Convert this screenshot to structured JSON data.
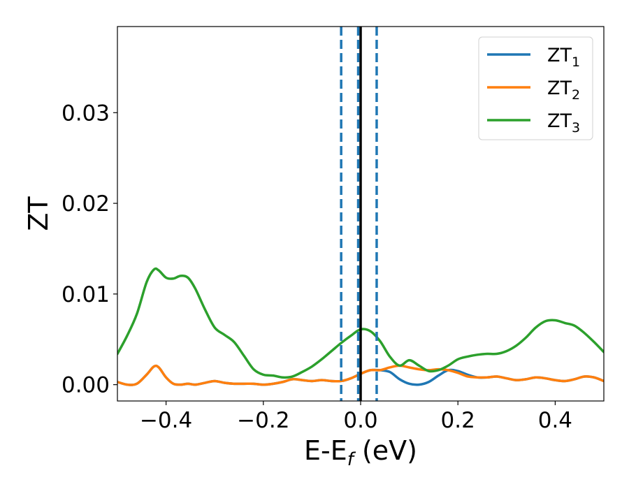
{
  "chart_data": {
    "type": "line",
    "xlabel": "E-E",
    "xlabel_sub": "f",
    "xlabel_unit": " (eV)",
    "ylabel": "ZT",
    "xlim": [
      -0.5,
      0.5
    ],
    "ylim": [
      -0.0018,
      0.0395
    ],
    "xticks": [
      -0.4,
      -0.2,
      0.0,
      0.2,
      0.4
    ],
    "xtick_labels": [
      "−0.4",
      "−0.2",
      "0.0",
      "0.2",
      "0.4"
    ],
    "yticks": [
      0.0,
      0.01,
      0.02,
      0.03
    ],
    "ytick_labels": [
      "0.00",
      "0.01",
      "0.02",
      "0.03"
    ],
    "grid": false,
    "legend_position": "top-right",
    "vlines": [
      {
        "x": 0.0,
        "style": "solid",
        "color": "#000000"
      },
      {
        "x": -0.04,
        "style": "dashed",
        "color": "#1f77b4"
      },
      {
        "x": -0.005,
        "style": "dashed",
        "color": "#1f77b4"
      },
      {
        "x": 0.033,
        "style": "dashed",
        "color": "#1f77b4"
      }
    ],
    "series": [
      {
        "name": "ZT",
        "sub": "1",
        "color": "#1f77b4",
        "x": [
          -0.5,
          -0.48,
          -0.46,
          -0.44,
          -0.425,
          -0.415,
          -0.4,
          -0.385,
          -0.37,
          -0.355,
          -0.34,
          -0.32,
          -0.3,
          -0.28,
          -0.26,
          -0.24,
          -0.22,
          -0.2,
          -0.18,
          -0.16,
          -0.14,
          -0.12,
          -0.1,
          -0.08,
          -0.06,
          -0.04,
          -0.02,
          0.0,
          0.02,
          0.04,
          0.06,
          0.08,
          0.1,
          0.12,
          0.14,
          0.16,
          0.18,
          0.2,
          0.22,
          0.24,
          0.26,
          0.28,
          0.3,
          0.32,
          0.34,
          0.36,
          0.38,
          0.4,
          0.42,
          0.44,
          0.46,
          0.48,
          0.5
        ],
        "y": [
          0.0003,
          0.0,
          0.0001,
          0.0011,
          0.002,
          0.0019,
          0.0008,
          0.0001,
          0.0,
          0.0001,
          0.0,
          0.0002,
          0.0004,
          0.0002,
          0.0001,
          0.0001,
          0.0001,
          0.0,
          0.0001,
          0.0003,
          0.0006,
          0.0005,
          0.0004,
          0.0005,
          0.0004,
          0.0004,
          0.0007,
          0.0012,
          0.0016,
          0.0016,
          0.0014,
          0.0006,
          0.0001,
          0.0,
          0.0003,
          0.001,
          0.0016,
          0.0015,
          0.0011,
          0.0008,
          0.0008,
          0.0009,
          0.0007,
          0.0005,
          0.0006,
          0.0008,
          0.0007,
          0.0005,
          0.0004,
          0.0006,
          0.0009,
          0.0008,
          0.0004
        ]
      },
      {
        "name": "ZT",
        "sub": "2",
        "color": "#ff7f0e",
        "x": [
          -0.5,
          -0.48,
          -0.46,
          -0.44,
          -0.425,
          -0.415,
          -0.4,
          -0.385,
          -0.37,
          -0.355,
          -0.34,
          -0.32,
          -0.3,
          -0.28,
          -0.26,
          -0.24,
          -0.22,
          -0.2,
          -0.18,
          -0.16,
          -0.14,
          -0.12,
          -0.1,
          -0.08,
          -0.06,
          -0.04,
          -0.02,
          0.0,
          0.02,
          0.04,
          0.06,
          0.08,
          0.1,
          0.12,
          0.14,
          0.16,
          0.18,
          0.2,
          0.22,
          0.24,
          0.26,
          0.28,
          0.3,
          0.32,
          0.34,
          0.36,
          0.38,
          0.4,
          0.42,
          0.44,
          0.46,
          0.48,
          0.5
        ],
        "y": [
          0.0003,
          0.0,
          0.0001,
          0.0011,
          0.002,
          0.0019,
          0.0008,
          0.0001,
          0.0,
          0.0001,
          0.0,
          0.0002,
          0.0004,
          0.0002,
          0.0001,
          0.0001,
          0.0001,
          0.0,
          0.0001,
          0.0003,
          0.0006,
          0.0005,
          0.0004,
          0.0005,
          0.0004,
          0.0004,
          0.0007,
          0.0012,
          0.0016,
          0.0016,
          0.0019,
          0.0021,
          0.0019,
          0.0017,
          0.0016,
          0.0017,
          0.0016,
          0.0013,
          0.0009,
          0.0008,
          0.0008,
          0.0009,
          0.0007,
          0.0005,
          0.0006,
          0.0008,
          0.0007,
          0.0005,
          0.0004,
          0.0006,
          0.0009,
          0.0008,
          0.0004
        ]
      },
      {
        "name": "ZT",
        "sub": "3",
        "color": "#2ca02c",
        "x": [
          -0.5,
          -0.48,
          -0.46,
          -0.44,
          -0.425,
          -0.415,
          -0.4,
          -0.385,
          -0.37,
          -0.355,
          -0.34,
          -0.32,
          -0.3,
          -0.28,
          -0.26,
          -0.24,
          -0.22,
          -0.2,
          -0.18,
          -0.16,
          -0.14,
          -0.12,
          -0.1,
          -0.08,
          -0.06,
          -0.04,
          -0.02,
          0.0,
          0.02,
          0.04,
          0.06,
          0.08,
          0.1,
          0.12,
          0.14,
          0.16,
          0.18,
          0.2,
          0.22,
          0.24,
          0.26,
          0.28,
          0.3,
          0.32,
          0.34,
          0.36,
          0.38,
          0.4,
          0.42,
          0.44,
          0.46,
          0.48,
          0.5
        ],
        "y": [
          0.0034,
          0.0054,
          0.0078,
          0.0113,
          0.0127,
          0.0126,
          0.0118,
          0.0117,
          0.012,
          0.0118,
          0.0106,
          0.0083,
          0.0063,
          0.0055,
          0.0047,
          0.0032,
          0.0017,
          0.0011,
          0.001,
          0.0008,
          0.0009,
          0.0014,
          0.002,
          0.0028,
          0.0037,
          0.0046,
          0.0054,
          0.0061,
          0.0059,
          0.0048,
          0.0031,
          0.0021,
          0.0027,
          0.0021,
          0.0015,
          0.0016,
          0.0021,
          0.0028,
          0.0031,
          0.0033,
          0.0034,
          0.0034,
          0.0037,
          0.0043,
          0.0052,
          0.0063,
          0.007,
          0.0071,
          0.0068,
          0.0065,
          0.0057,
          0.0047,
          0.0036
        ]
      }
    ]
  }
}
